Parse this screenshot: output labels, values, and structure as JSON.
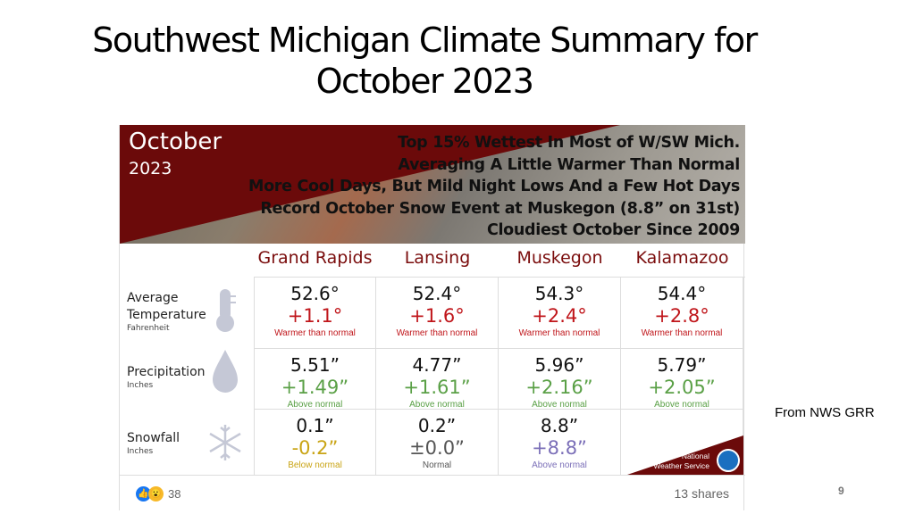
{
  "slide": {
    "title_line1": "Southwest Michigan Climate Summary for",
    "title_line2": "October 2023",
    "source": "From NWS GRR",
    "page_number": "9"
  },
  "banner": {
    "month": "October",
    "year": "2023",
    "lines": [
      "Top 15% Wettest In Most of W/SW Mich.",
      "Averaging A Little Warmer Than Normal",
      "More Cool Days, But Mild Night Lows And a Few Hot Days",
      "Record October Snow Event at Muskegon (8.8” on 31st)",
      "Cloudiest October Since 2009"
    ]
  },
  "columns": [
    "Grand Rapids",
    "Lansing",
    "Muskegon",
    "Kalamazoo"
  ],
  "rows": [
    {
      "label": "Average",
      "label2": "Temperature",
      "unit": "Fahrenheit",
      "icon": "thermometer-icon",
      "cells": [
        {
          "value": "52.6°",
          "delta": "+1.1°",
          "note": "Warmer than normal"
        },
        {
          "value": "52.4°",
          "delta": "+1.6°",
          "note": "Warmer than normal"
        },
        {
          "value": "54.3°",
          "delta": "+2.4°",
          "note": "Warmer than normal"
        },
        {
          "value": "54.4°",
          "delta": "+2.8°",
          "note": "Warmer than normal"
        }
      ]
    },
    {
      "label": "Precipitation",
      "label2": "",
      "unit": "Inches",
      "icon": "raindrop-icon",
      "cells": [
        {
          "value": "5.51”",
          "delta": "+1.49”",
          "note": "Above normal"
        },
        {
          "value": "4.77”",
          "delta": "+1.61”",
          "note": "Above normal"
        },
        {
          "value": "5.96”",
          "delta": "+2.16”",
          "note": "Above normal"
        },
        {
          "value": "5.79”",
          "delta": "+2.05”",
          "note": "Above normal"
        }
      ]
    },
    {
      "label": "Snowfall",
      "label2": "",
      "unit": "Inches",
      "icon": "snowflake-icon",
      "cells": [
        {
          "value": "0.1”",
          "delta": "-0.2”",
          "note": "Below normal"
        },
        {
          "value": "0.2”",
          "delta": "±0.0”",
          "note": "Normal"
        },
        {
          "value": "8.8”",
          "delta": "+8.8”",
          "note": "Above normal"
        }
      ]
    }
  ],
  "colors": {
    "warm": "#c0161b",
    "wet": "#5aa046",
    "below": "#c9a415",
    "normal": "#555555",
    "snow_above": "#7b6fb8",
    "brand": "#6b0a0a"
  },
  "nws": {
    "line1": "National",
    "line2": "Weather Service"
  },
  "social": {
    "reactions": "38",
    "shares": "13 shares"
  }
}
